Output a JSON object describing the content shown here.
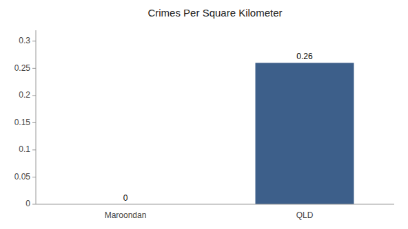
{
  "chart_data": {
    "type": "bar",
    "title": "Crimes Per Square Kilometer",
    "categories": [
      "Maroondan",
      "QLD"
    ],
    "values": [
      0,
      0.26
    ],
    "color": "#3d5f8a",
    "ylim": [
      0,
      0.32
    ],
    "yticks": [
      0,
      0.05,
      0.1,
      0.15,
      0.2,
      0.25,
      0.3
    ],
    "grid": false,
    "data_labels": true
  }
}
